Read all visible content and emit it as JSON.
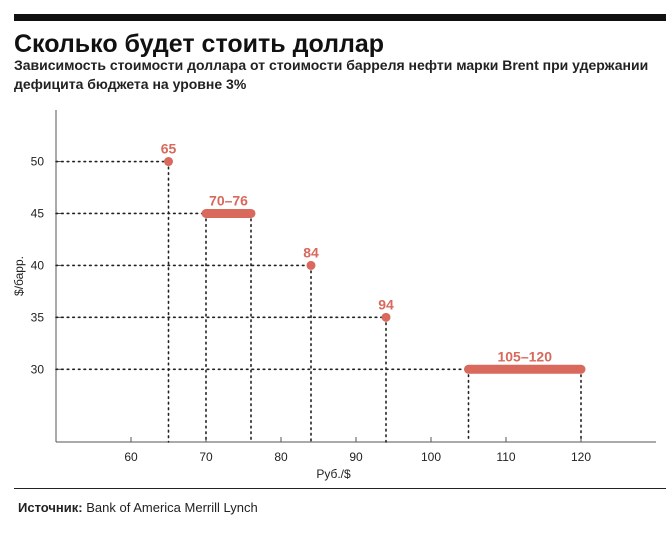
{
  "header": {
    "title": "Сколько будет стоить доллар",
    "subtitle": "Зависимость стоимости доллара от стоимости барреля нефти марки Brent при удержании дефицита бюджета на уровне 3%"
  },
  "footer": {
    "source_label": "Источник:",
    "source_text": "Bank of America Merrill Lynch"
  },
  "colors": {
    "accent": "#d8695c",
    "axis": "#555555",
    "text": "#222222"
  },
  "chart_data": {
    "type": "scatter",
    "title": "Сколько будет стоить доллар",
    "xlabel": "Руб./$",
    "ylabel": "$/барр.",
    "xlim": [
      50,
      130
    ],
    "ylim": [
      23,
      54
    ],
    "xticks": [
      60,
      70,
      80,
      90,
      100,
      110,
      120
    ],
    "yticks": [
      30,
      35,
      40,
      45,
      50
    ],
    "grid": false,
    "points": [
      {
        "label": "65",
        "x_min": 65,
        "x_max": 65,
        "y": 50
      },
      {
        "label": "70–76",
        "x_min": 70,
        "x_max": 76,
        "y": 45
      },
      {
        "label": "84",
        "x_min": 84,
        "x_max": 84,
        "y": 40
      },
      {
        "label": "94",
        "x_min": 94,
        "x_max": 94,
        "y": 35
      },
      {
        "label": "105–120",
        "x_min": 105,
        "x_max": 120,
        "y": 30
      }
    ]
  }
}
